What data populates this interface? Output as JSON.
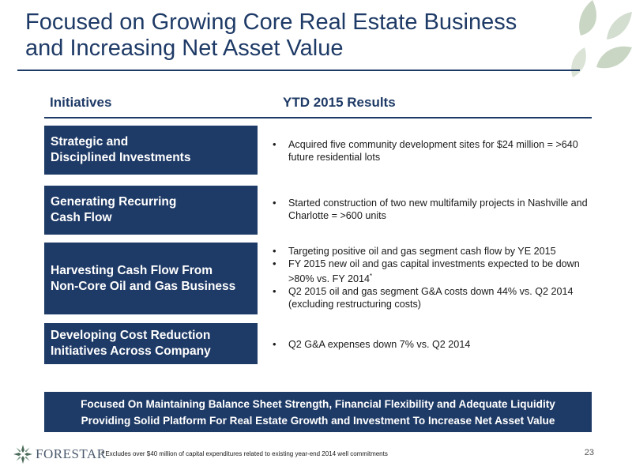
{
  "title_line1": "Focused on Growing Core Real Estate Business",
  "title_line2": "and Increasing Net Asset Value",
  "headers": {
    "initiatives": "Initiatives",
    "results": "YTD 2015 Results"
  },
  "rows": [
    {
      "initiative_line1": "Strategic and",
      "initiative_line2": "Disciplined Investments",
      "results": [
        "Acquired five community development sites for $24 million = >640 future residential lots"
      ]
    },
    {
      "initiative_line1": "Generating Recurring",
      "initiative_line2": "Cash Flow",
      "results": [
        "Started construction of two new multifamily projects in Nashville and Charlotte = >600 units"
      ]
    },
    {
      "initiative_line1": "Harvesting Cash Flow From",
      "initiative_line2": "Non-Core Oil and Gas Business",
      "results": [
        "Targeting positive oil and gas segment cash flow by YE 2015",
        "FY 2015 new oil and gas capital investments expected to be down >80% vs. FY 2014",
        "Q2 2015 oil and gas segment G&A costs down 44% vs. Q2 2014 (excluding restructuring costs)"
      ],
      "footnote_marker": "*"
    },
    {
      "initiative_line1": "Developing Cost Reduction",
      "initiative_line2": "Initiatives Across Company",
      "results": [
        "Q2 G&A expenses down 7% vs. Q2 2014"
      ]
    }
  ],
  "banner_line1": "Focused On Maintaining Balance Sheet Strength, Financial Flexibility and Adequate Liquidity",
  "banner_line2": "Providing Solid Platform For Real Estate Growth and Investment To Increase Net Asset Value",
  "logo_text": "FORESTAR",
  "footnote": "* Excludes over $40 million of capital expenditures related to existing year-end 2014 well commitments",
  "page_number": "23",
  "colors": {
    "navy": "#1e3a66",
    "leaf": "#c9d6c4"
  }
}
